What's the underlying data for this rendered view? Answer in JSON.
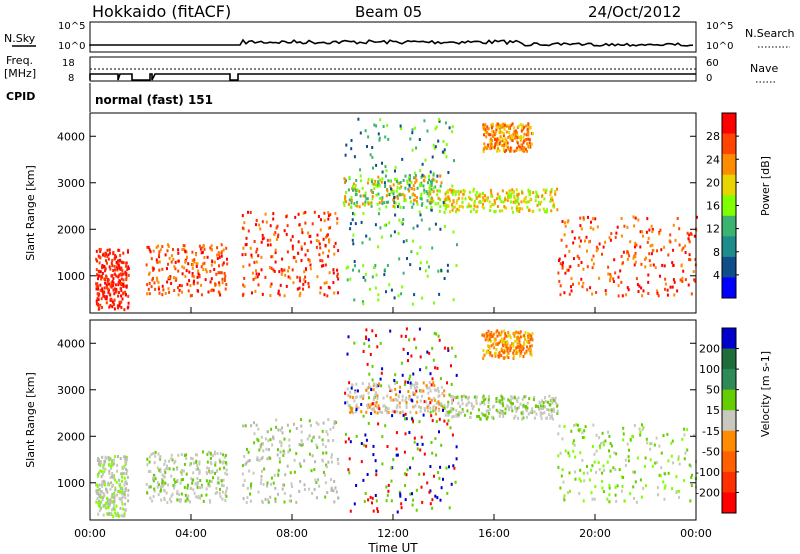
{
  "header": {
    "station": "Hokkaido (fitACF)",
    "beam": "Beam 05",
    "date": "24/Oct/2012"
  },
  "strip_panels": {
    "nsky_label": "N.Sky",
    "nsky_ticks": [
      "10^5",
      "10^0"
    ],
    "nsearch_label": "N.Search",
    "nsearch_ticks": [
      "10^5",
      "10^0"
    ],
    "freq_label_1": "Freq.",
    "freq_label_2": "[MHz]",
    "freq_ticks": [
      "18",
      "8"
    ],
    "nave_label": "Nave",
    "nave_ticks": [
      "60",
      "0"
    ],
    "cpid_label": "CPID",
    "cpid_value": "normal (fast) 151"
  },
  "chart_data": [
    {
      "type": "heatmap",
      "title": "",
      "xlabel": "",
      "ylabel": "Slant Range [km]",
      "yticks": [
        "1000",
        "2000",
        "3000",
        "4000"
      ],
      "ylim": [
        200,
        4500
      ],
      "colorbar_label": "Power [dB]",
      "colorbar_ticks": [
        "28",
        "24",
        "20",
        "16",
        "12",
        "8",
        "4"
      ],
      "colorbar_colors": [
        "#ff0000",
        "#ff4500",
        "#ff8c00",
        "#e8d400",
        "#7fff00",
        "#3cb371",
        "#1e8c8c",
        "#104e8b",
        "#0000ff"
      ]
    },
    {
      "type": "heatmap",
      "title": "",
      "xlabel": "Time UT",
      "ylabel": "Slant Range [km]",
      "yticks": [
        "1000",
        "2000",
        "3000",
        "4000"
      ],
      "ylim": [
        200,
        4500
      ],
      "xticks": [
        "00:00",
        "04:00",
        "08:00",
        "12:00",
        "16:00",
        "20:00",
        "00:00"
      ],
      "xlim_hours": [
        0,
        24
      ],
      "colorbar_label": "Velocity [m s-1]",
      "colorbar_ticks": [
        "200",
        "100",
        "50",
        "15",
        "-15",
        "-50",
        "-100",
        "-200"
      ],
      "colorbar_colors": [
        "#0000cd",
        "#1f6e3a",
        "#2e8b57",
        "#66cd00",
        "#c8c8c0",
        "#ff8c00",
        "#ff6000",
        "#ff3000",
        "#ff0000"
      ]
    }
  ]
}
